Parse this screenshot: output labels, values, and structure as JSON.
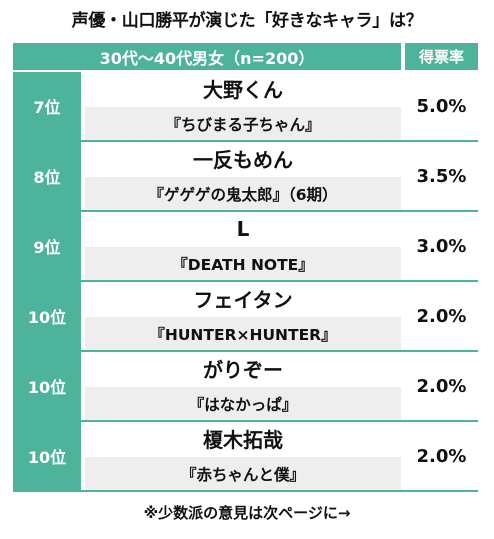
{
  "title": "声優・山口勝平が演じた「好きなキャラ」は？",
  "header": {
    "group": "30代〜40代男女（n=200）",
    "rate": "得票率"
  },
  "rows": [
    {
      "rank": "7位",
      "name": "大野くん",
      "work": "『ちびまる子ちゃん』",
      "pct": "5.0%"
    },
    {
      "rank": "8位",
      "name": "一反もめん",
      "work": "『ゲゲゲの鬼太郎』（6期）",
      "pct": "3.5%"
    },
    {
      "rank": "9位",
      "name": "L",
      "work": "『DEATH NOTE』",
      "pct": "3.0%"
    },
    {
      "rank": "10位",
      "name": "フェイタン",
      "work": "『HUNTER×HUNTER』",
      "pct": "2.0%"
    },
    {
      "rank": "10位",
      "name": "がりぞー",
      "work": "『はなかっぱ』",
      "pct": "2.0%"
    },
    {
      "rank": "10位",
      "name": "榎木拓哉",
      "work": "『赤ちゃんと僕』",
      "pct": "2.0%"
    }
  ],
  "footer": "※少数派の意見は次ページに→",
  "colors": {
    "accent": "#4db39b",
    "work_bg": "#eeeeee"
  }
}
